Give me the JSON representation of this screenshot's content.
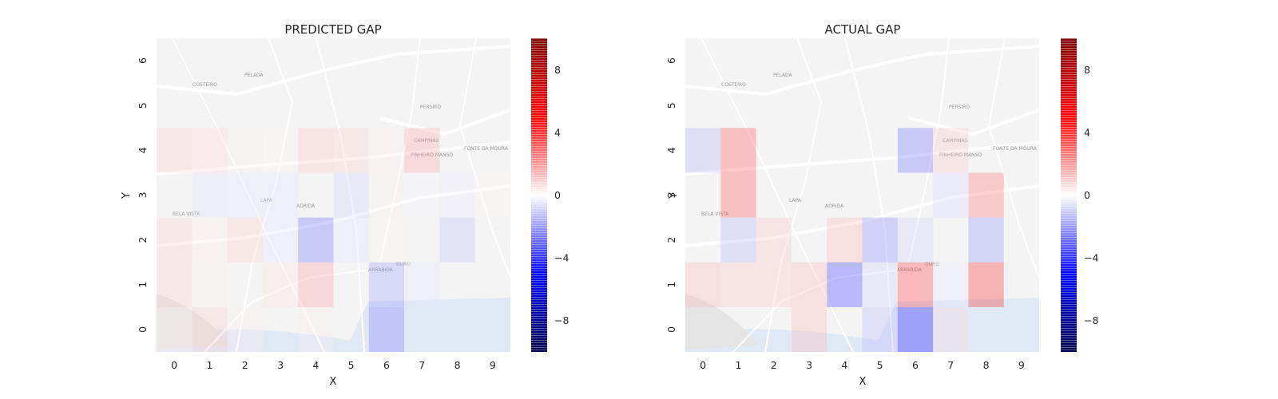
{
  "chart_data": [
    {
      "type": "heatmap",
      "title": "PREDICTED GAP",
      "xlabel": "X",
      "ylabel": "Y",
      "x_ticks": [
        "0",
        "1",
        "2",
        "3",
        "4",
        "5",
        "6",
        "7",
        "8",
        "9"
      ],
      "y_ticks": [
        "0",
        "1",
        "2",
        "3",
        "4",
        "5",
        "6"
      ],
      "xlim": [
        -0.5,
        9.5
      ],
      "ylim": [
        -0.5,
        6.5
      ],
      "colormap": "seismic",
      "vmin": -10,
      "vmax": 10,
      "colorbar_ticks": [
        "8",
        "4",
        "0",
        "−4",
        "−8"
      ],
      "colorbar_values": [
        8,
        4,
        0,
        -4,
        -8
      ],
      "map_labels": [
        "COSTEIRO",
        "PELADA",
        "PERSIRO",
        "CAMPINAS",
        "PINHEIRO MANSO",
        "FONTE DA MOURA",
        "ARRABIDA",
        "BELA VISTA",
        "LAPA",
        "ADRIDA",
        "OURO"
      ],
      "cells": [
        {
          "x": 0,
          "y": 4,
          "value": 1.0
        },
        {
          "x": 1,
          "y": 4,
          "value": 0.8
        },
        {
          "x": 2,
          "y": 4,
          "value": 0.3
        },
        {
          "x": 3,
          "y": 4,
          "value": 0.2
        },
        {
          "x": 4,
          "y": 4,
          "value": 1.2
        },
        {
          "x": 5,
          "y": 4,
          "value": 1.0
        },
        {
          "x": 6,
          "y": 4,
          "value": 0.4
        },
        {
          "x": 7,
          "y": 4,
          "value": 1.8
        },
        {
          "x": 1,
          "y": 3,
          "value": -0.6
        },
        {
          "x": 2,
          "y": 3,
          "value": -0.5
        },
        {
          "x": 3,
          "y": 3,
          "value": -0.5
        },
        {
          "x": 5,
          "y": 3,
          "value": -1.0
        },
        {
          "x": 6,
          "y": 3,
          "value": 0.3
        },
        {
          "x": 7,
          "y": 3,
          "value": -0.2
        },
        {
          "x": 8,
          "y": 3,
          "value": -0.4
        },
        {
          "x": 9,
          "y": 3,
          "value": 0.2
        },
        {
          "x": 0,
          "y": 2,
          "value": 1.0
        },
        {
          "x": 1,
          "y": 2,
          "value": 0.4
        },
        {
          "x": 2,
          "y": 2,
          "value": 1.0
        },
        {
          "x": 3,
          "y": 2,
          "value": -0.5
        },
        {
          "x": 4,
          "y": 2,
          "value": -3.0
        },
        {
          "x": 5,
          "y": 2,
          "value": -0.5
        },
        {
          "x": 6,
          "y": 2,
          "value": 0.2
        },
        {
          "x": 8,
          "y": 2,
          "value": -1.3
        },
        {
          "x": 0,
          "y": 1,
          "value": 1.0
        },
        {
          "x": 1,
          "y": 1,
          "value": 0.3
        },
        {
          "x": 3,
          "y": 1,
          "value": 0.6
        },
        {
          "x": 4,
          "y": 1,
          "value": 2.0
        },
        {
          "x": 6,
          "y": 1,
          "value": -2.0
        },
        {
          "x": 7,
          "y": 1,
          "value": -0.5
        },
        {
          "x": 0,
          "y": 0,
          "value": 0.4
        },
        {
          "x": 1,
          "y": 0,
          "value": 1.0
        },
        {
          "x": 2,
          "y": 0,
          "value": 0.4
        },
        {
          "x": 4,
          "y": 0,
          "value": 0.3
        },
        {
          "x": 6,
          "y": 0,
          "value": -2.6
        }
      ]
    },
    {
      "type": "heatmap",
      "title": "ACTUAL GAP",
      "xlabel": "X",
      "ylabel": "Y",
      "x_ticks": [
        "0",
        "1",
        "2",
        "3",
        "4",
        "5",
        "6",
        "7",
        "8",
        "9"
      ],
      "y_ticks": [
        "0",
        "1",
        "2",
        "3",
        "4",
        "5",
        "6"
      ],
      "xlim": [
        -0.5,
        9.5
      ],
      "ylim": [
        -0.5,
        6.5
      ],
      "colormap": "seismic",
      "vmin": -10,
      "vmax": 10,
      "colorbar_ticks": [
        "8",
        "4",
        "0",
        "−4",
        "−8"
      ],
      "colorbar_values": [
        8,
        4,
        0,
        -4,
        -8
      ],
      "map_labels": [
        "COSTEIRO",
        "PELADA",
        "PERSIRO",
        "CAMPINAS",
        "PINHEIRO MANSO",
        "FONTE DA MOURA",
        "ARRABIDA",
        "BELA VISTA",
        "LAPA",
        "ADRIDA",
        "OURO"
      ],
      "cells": [
        {
          "x": 0,
          "y": 4,
          "value": -1.6
        },
        {
          "x": 1,
          "y": 4,
          "value": 3.5
        },
        {
          "x": 6,
          "y": 4,
          "value": -3.0
        },
        {
          "x": 7,
          "y": 4,
          "value": 1.2
        },
        {
          "x": 1,
          "y": 3,
          "value": 3.5
        },
        {
          "x": 7,
          "y": 3,
          "value": -0.8
        },
        {
          "x": 8,
          "y": 3,
          "value": 3.0
        },
        {
          "x": 1,
          "y": 2,
          "value": -1.6
        },
        {
          "x": 2,
          "y": 2,
          "value": 1.2
        },
        {
          "x": 4,
          "y": 2,
          "value": 1.5
        },
        {
          "x": 5,
          "y": 2,
          "value": -2.5
        },
        {
          "x": 6,
          "y": 2,
          "value": -1.0
        },
        {
          "x": 8,
          "y": 2,
          "value": -2.2
        },
        {
          "x": 0,
          "y": 1,
          "value": 1.5
        },
        {
          "x": 1,
          "y": 1,
          "value": 1.2
        },
        {
          "x": 2,
          "y": 1,
          "value": 1.2
        },
        {
          "x": 3,
          "y": 1,
          "value": 1.5
        },
        {
          "x": 4,
          "y": 1,
          "value": -4.0
        },
        {
          "x": 5,
          "y": 1,
          "value": -1.0
        },
        {
          "x": 6,
          "y": 1,
          "value": 4.0
        },
        {
          "x": 7,
          "y": 1,
          "value": -0.5
        },
        {
          "x": 8,
          "y": 1,
          "value": 4.5
        },
        {
          "x": 3,
          "y": 0,
          "value": 1.5
        },
        {
          "x": 5,
          "y": 0,
          "value": -1.5
        },
        {
          "x": 6,
          "y": 0,
          "value": -5.0
        },
        {
          "x": 7,
          "y": 0,
          "value": 0.8
        }
      ]
    }
  ]
}
